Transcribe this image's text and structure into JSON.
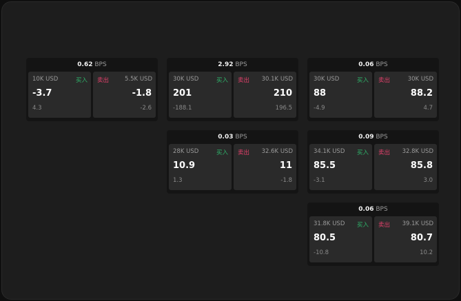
{
  "unit": "BPS",
  "buy_label": "买入",
  "sell_label": "卖出",
  "cards": [
    {
      "spread": "0.62",
      "buy": {
        "size": "10K USD",
        "price": "-3.7",
        "delta": "4.3"
      },
      "sell": {
        "size": "5.5K USD",
        "price": "-1.8",
        "delta": "-2.6"
      }
    },
    {
      "spread": "2.92",
      "buy": {
        "size": "30K USD",
        "price": "201",
        "delta": "-188.1"
      },
      "sell": {
        "size": "30.1K USD",
        "price": "210",
        "delta": "196.5"
      }
    },
    {
      "spread": "0.06",
      "buy": {
        "size": "30K USD",
        "price": "88",
        "delta": "-4.9"
      },
      "sell": {
        "size": "30K USD",
        "price": "88.2",
        "delta": "4.7"
      }
    },
    {
      "spread": "0.03",
      "buy": {
        "size": "28K USD",
        "price": "10.9",
        "delta": "1.3"
      },
      "sell": {
        "size": "32.6K USD",
        "price": "11",
        "delta": "-1.8"
      }
    },
    {
      "spread": "0.09",
      "buy": {
        "size": "34.1K USD",
        "price": "85.5",
        "delta": "-3.1"
      },
      "sell": {
        "size": "32.8K USD",
        "price": "85.8",
        "delta": "3.0"
      }
    },
    {
      "spread": "0.06",
      "buy": {
        "size": "31.8K USD",
        "price": "80.5",
        "delta": "-10.8"
      },
      "sell": {
        "size": "39.1K USD",
        "price": "80.7",
        "delta": "10.2"
      }
    }
  ]
}
